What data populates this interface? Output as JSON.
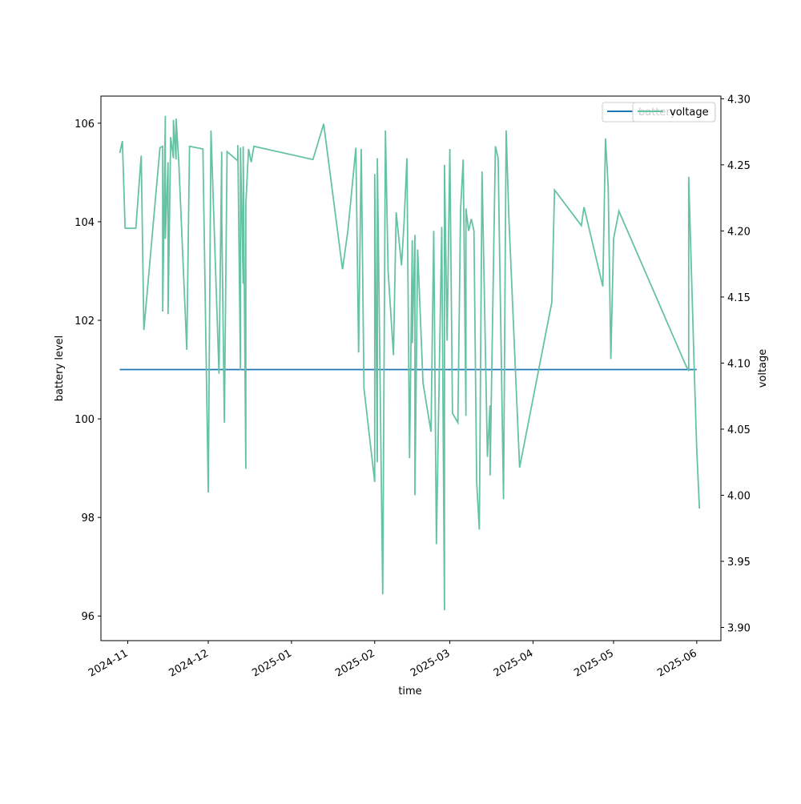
{
  "chart_data": {
    "type": "line",
    "xlabel": "time",
    "ylabel": "battery level",
    "y2label": "voltage",
    "grid": false,
    "legend_position": "top-right",
    "xlim": [
      "2024-10-22",
      "2025-06-10"
    ],
    "ylim": [
      95.5,
      106.55
    ],
    "y2lim": [
      3.89,
      4.302
    ],
    "x_ticks": [
      "2024-11",
      "2024-12",
      "2025-01",
      "2025-02",
      "2025-03",
      "2025-04",
      "2025-05",
      "2025-06"
    ],
    "y_ticks": [
      "96",
      "98",
      "100",
      "102",
      "104",
      "106"
    ],
    "y2_ticks": [
      "3.90",
      "3.95",
      "4.00",
      "4.05",
      "4.10",
      "4.15",
      "4.20",
      "4.25",
      "4.30"
    ],
    "series": [
      {
        "name": "battery",
        "axis": "left",
        "color": "#1f77b4",
        "points": [
          [
            "2024-10-29",
            101.0
          ],
          [
            "2025-06-01",
            101.0
          ]
        ]
      },
      {
        "name": "voltage",
        "axis": "right",
        "color": "#66c2a5",
        "points": [
          [
            "2024-10-29",
            4.259
          ],
          [
            "2024-10-30",
            4.268
          ],
          [
            "2024-10-31",
            4.202
          ],
          [
            "2024-11-04",
            4.202
          ],
          [
            "2024-11-06",
            4.257
          ],
          [
            "2024-11-07",
            4.125
          ],
          [
            "2024-11-13",
            4.263
          ],
          [
            "2024-11-14",
            4.264
          ],
          [
            "2024-11-14",
            4.139
          ],
          [
            "2024-11-15",
            4.287
          ],
          [
            "2024-11-15",
            4.194
          ],
          [
            "2024-11-16",
            4.252
          ],
          [
            "2024-11-16",
            4.137
          ],
          [
            "2024-11-17",
            4.271
          ],
          [
            "2024-11-18",
            4.255
          ],
          [
            "2024-11-18",
            4.284
          ],
          [
            "2024-11-19",
            4.254
          ],
          [
            "2024-11-19",
            4.285
          ],
          [
            "2024-11-20",
            4.252
          ],
          [
            "2024-11-23",
            4.11
          ],
          [
            "2024-11-24",
            4.264
          ],
          [
            "2024-11-29",
            4.262
          ],
          [
            "2024-12-01",
            4.002
          ],
          [
            "2024-12-02",
            4.276
          ],
          [
            "2024-12-05",
            4.092
          ],
          [
            "2024-12-06",
            4.26
          ],
          [
            "2024-12-06",
            4.211
          ],
          [
            "2024-12-07",
            4.055
          ],
          [
            "2024-12-08",
            4.26
          ],
          [
            "2024-12-12",
            4.253
          ],
          [
            "2024-12-12",
            4.265
          ],
          [
            "2024-12-13",
            4.095
          ],
          [
            "2024-12-13",
            4.263
          ],
          [
            "2024-12-14",
            4.16
          ],
          [
            "2024-12-14",
            4.264
          ],
          [
            "2024-12-15",
            4.02
          ],
          [
            "2024-12-15",
            4.22
          ],
          [
            "2024-12-16",
            4.262
          ],
          [
            "2024-12-17",
            4.252
          ],
          [
            "2024-12-18",
            4.264
          ],
          [
            "2025-01-09",
            4.254
          ],
          [
            "2025-01-13",
            4.281
          ],
          [
            "2025-01-20",
            4.171
          ],
          [
            "2025-01-22",
            4.2
          ],
          [
            "2025-01-25",
            4.263
          ],
          [
            "2025-01-26",
            4.108
          ],
          [
            "2025-01-27",
            4.262
          ],
          [
            "2025-01-28",
            4.081
          ],
          [
            "2025-02-01",
            4.01
          ],
          [
            "2025-02-01",
            4.243
          ],
          [
            "2025-02-02",
            4.025
          ],
          [
            "2025-02-02",
            4.255
          ],
          [
            "2025-02-04",
            3.925
          ],
          [
            "2025-02-05",
            4.276
          ],
          [
            "2025-02-06",
            4.17
          ],
          [
            "2025-02-08",
            4.106
          ],
          [
            "2025-02-09",
            4.214
          ],
          [
            "2025-02-11",
            4.174
          ],
          [
            "2025-02-12",
            4.208
          ],
          [
            "2025-02-13",
            4.255
          ],
          [
            "2025-02-14",
            4.028
          ],
          [
            "2025-02-15",
            4.193
          ],
          [
            "2025-02-15",
            4.115
          ],
          [
            "2025-02-16",
            4.197
          ],
          [
            "2025-02-16",
            4.0
          ],
          [
            "2025-02-17",
            4.186
          ],
          [
            "2025-02-19",
            4.085
          ],
          [
            "2025-02-22",
            4.048
          ],
          [
            "2025-02-23",
            4.2
          ],
          [
            "2025-02-24",
            3.963
          ],
          [
            "2025-02-26",
            4.203
          ],
          [
            "2025-02-27",
            3.913
          ],
          [
            "2025-02-27",
            4.25
          ],
          [
            "2025-02-28",
            4.117
          ],
          [
            "2025-03-01",
            4.262
          ],
          [
            "2025-03-02",
            4.062
          ],
          [
            "2025-03-04",
            4.055
          ],
          [
            "2025-03-05",
            4.216
          ],
          [
            "2025-03-06",
            4.254
          ],
          [
            "2025-03-07",
            4.06
          ],
          [
            "2025-03-07",
            4.217
          ],
          [
            "2025-03-08",
            4.2
          ],
          [
            "2025-03-09",
            4.209
          ],
          [
            "2025-03-10",
            4.2
          ],
          [
            "2025-03-11",
            4.01
          ],
          [
            "2025-03-12",
            3.974
          ],
          [
            "2025-03-13",
            4.245
          ],
          [
            "2025-03-15",
            4.029
          ],
          [
            "2025-03-16",
            4.068
          ],
          [
            "2025-03-16",
            4.015
          ],
          [
            "2025-03-18",
            4.264
          ],
          [
            "2025-03-19",
            4.255
          ],
          [
            "2025-03-21",
            3.997
          ],
          [
            "2025-03-22",
            4.276
          ],
          [
            "2025-03-23",
            4.21
          ],
          [
            "2025-03-27",
            4.021
          ],
          [
            "2025-04-08",
            4.146
          ],
          [
            "2025-04-09",
            4.231
          ],
          [
            "2025-04-19",
            4.204
          ],
          [
            "2025-04-20",
            4.218
          ],
          [
            "2025-04-27",
            4.158
          ],
          [
            "2025-04-28",
            4.27
          ],
          [
            "2025-04-29",
            4.233
          ],
          [
            "2025-04-30",
            4.103
          ],
          [
            "2025-05-01",
            4.194
          ],
          [
            "2025-05-03",
            4.215
          ],
          [
            "2025-05-28",
            4.098
          ],
          [
            "2025-05-29",
            4.094
          ],
          [
            "2025-05-29",
            4.241
          ],
          [
            "2025-05-31",
            4.1
          ],
          [
            "2025-06-01",
            4.035
          ],
          [
            "2025-06-02",
            3.99
          ]
        ]
      }
    ]
  },
  "legend": {
    "battery_label": "battery",
    "voltage_label": "voltage"
  }
}
